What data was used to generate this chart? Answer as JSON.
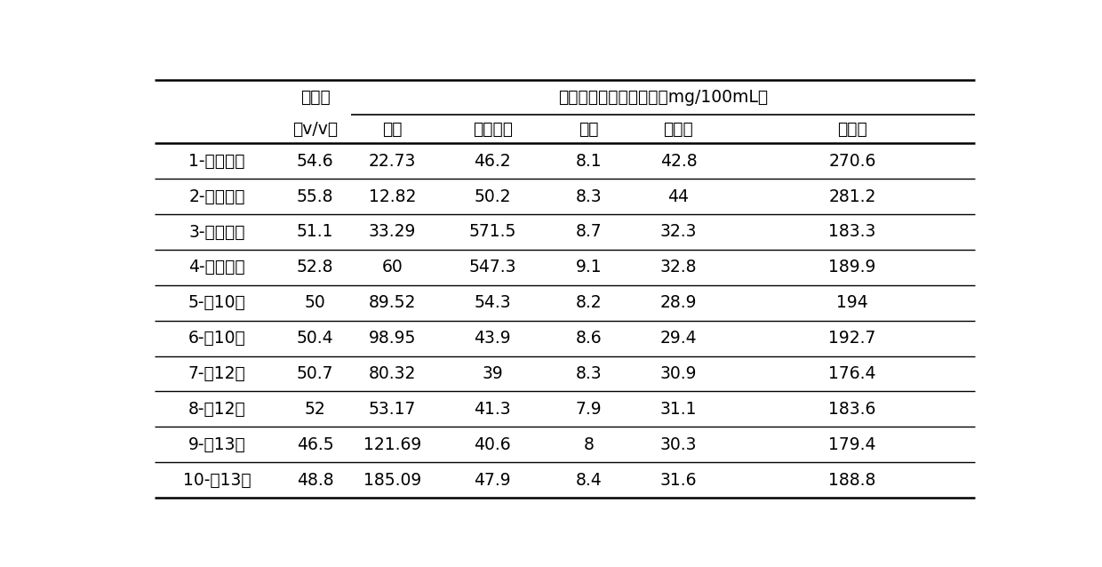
{
  "header_jiujingdu_line1": "酒精度",
  "header_jiujingdu_line2": "（v/v）",
  "header_main": "糟沙气相色谱检测指标（mg/100mL）",
  "sub_headers": [
    "乙醛",
    "乙酸乙酯",
    "甲醇",
    "正丙醇",
    "杂醇油"
  ],
  "row_labels": [
    "1-酵母１号",
    "2-酵母１号",
    "3-酵母２号",
    "4-酵母２号",
    "5-酱10号",
    "6-酱10号",
    "7-酱12号",
    "8-酱12号",
    "9-酱13号",
    "10-酱13号"
  ],
  "col_jiujingdu": [
    "54.6",
    "55.8",
    "51.1",
    "52.8",
    "50",
    "50.4",
    "50.7",
    "52",
    "46.5",
    "48.8"
  ],
  "col_yichun": [
    "22.73",
    "12.82",
    "33.29",
    "60",
    "89.52",
    "98.95",
    "80.32",
    "53.17",
    "121.69",
    "185.09"
  ],
  "col_yisuanyizhi": [
    "46.2",
    "50.2",
    "571.5",
    "547.3",
    "54.3",
    "43.9",
    "39",
    "41.3",
    "40.6",
    "47.9"
  ],
  "col_jiachun": [
    "8.1",
    "8.3",
    "8.7",
    "9.1",
    "8.2",
    "8.6",
    "8.3",
    "7.9",
    "8",
    "8.4"
  ],
  "col_zhengbingchun": [
    "42.8",
    "44",
    "32.3",
    "32.8",
    "28.9",
    "29.4",
    "30.9",
    "31.1",
    "30.3",
    "31.6"
  ],
  "col_zachunyou": [
    "270.6",
    "281.2",
    "183.3",
    "189.9",
    "194",
    "192.7",
    "176.4",
    "183.6",
    "179.4",
    "188.8"
  ],
  "bg_color": "#ffffff",
  "text_color": "#000000",
  "font_size": 13.5
}
